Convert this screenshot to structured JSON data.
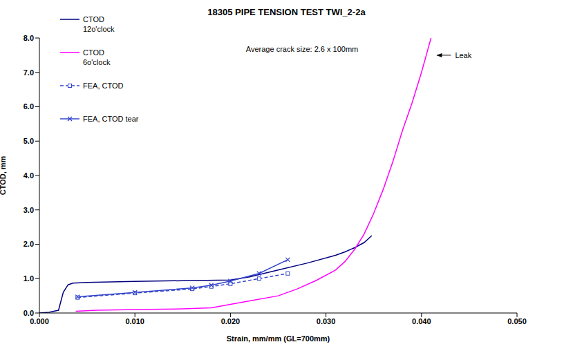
{
  "chart_data": {
    "type": "line",
    "title": "18305 PIPE TENSION TEST TWI_2-2a",
    "x_label": "Strain, mm/mm (GL=700mm)",
    "y_label": "CTOD, mm",
    "xlim": [
      0,
      0.05
    ],
    "ylim": [
      0,
      8
    ],
    "xticks": [
      {
        "value": 0,
        "label": "0.000"
      },
      {
        "value": 0.01,
        "label": "0.010"
      },
      {
        "value": 0.02,
        "label": "0.020"
      },
      {
        "value": 0.03,
        "label": "0.030"
      },
      {
        "value": 0.04,
        "label": "0.040"
      },
      {
        "value": 0.05,
        "label": "0.050"
      }
    ],
    "yticks": [
      {
        "value": 0,
        "label": "0.0"
      },
      {
        "value": 1,
        "label": "1.0"
      },
      {
        "value": 2,
        "label": "2.0"
      },
      {
        "value": 3,
        "label": "3.0"
      },
      {
        "value": 4,
        "label": "4.0"
      },
      {
        "value": 5,
        "label": "5.0"
      },
      {
        "value": 6,
        "label": "6.0"
      },
      {
        "value": 7,
        "label": "7.0"
      },
      {
        "value": 8,
        "label": "8.0"
      }
    ],
    "grid": false,
    "legend": "upper left",
    "annotations": [
      {
        "text": "Average crack size: 2.6 x 100mm",
        "x": 0.0275,
        "y": 7.6
      },
      {
        "text": "Leak",
        "x": 0.0412,
        "y": 7.5
      }
    ],
    "series": [
      {
        "name": "CTOD 12o'clock",
        "color": "#000080",
        "line_style": "solid",
        "marker": "none",
        "x": [
          0,
          0.001,
          0.002,
          0.0025,
          0.003,
          0.0035,
          0.005,
          0.01,
          0.015,
          0.02,
          0.022,
          0.025,
          0.028,
          0.031,
          0.032,
          0.033,
          0.034,
          0.0348
        ],
        "values": [
          0,
          0.02,
          0.08,
          0.6,
          0.82,
          0.87,
          0.89,
          0.92,
          0.94,
          0.96,
          1.05,
          1.25,
          1.45,
          1.68,
          1.78,
          1.9,
          2.05,
          2.25
        ]
      },
      {
        "name": "CTOD 6o'clock",
        "color": "#FF00FF",
        "line_style": "solid",
        "marker": "none",
        "x": [
          0.0038,
          0.006,
          0.01,
          0.015,
          0.018,
          0.02,
          0.022,
          0.025,
          0.027,
          0.029,
          0.031,
          0.032,
          0.033,
          0.034,
          0.035,
          0.036,
          0.037,
          0.038,
          0.039,
          0.04,
          0.0405,
          0.041
        ],
        "values": [
          0.05,
          0.08,
          0.1,
          0.12,
          0.15,
          0.25,
          0.35,
          0.5,
          0.7,
          0.95,
          1.25,
          1.5,
          1.85,
          2.3,
          2.9,
          3.6,
          4.4,
          5.3,
          6.1,
          7.0,
          7.5,
          8.0
        ]
      },
      {
        "name": "FEA, CTOD",
        "color": "#3344CC",
        "line_style": "dashed",
        "marker": "square",
        "x": [
          0.004,
          0.01,
          0.016,
          0.018,
          0.02,
          0.023,
          0.026
        ],
        "values": [
          0.45,
          0.58,
          0.7,
          0.77,
          0.85,
          1.0,
          1.15
        ]
      },
      {
        "name": "FEA, CTOD tear",
        "color": "#3344CC",
        "line_style": "solid",
        "marker": "x",
        "x": [
          0.004,
          0.01,
          0.016,
          0.018,
          0.02,
          0.023,
          0.026
        ],
        "values": [
          0.47,
          0.6,
          0.73,
          0.81,
          0.93,
          1.15,
          1.55
        ]
      }
    ]
  }
}
